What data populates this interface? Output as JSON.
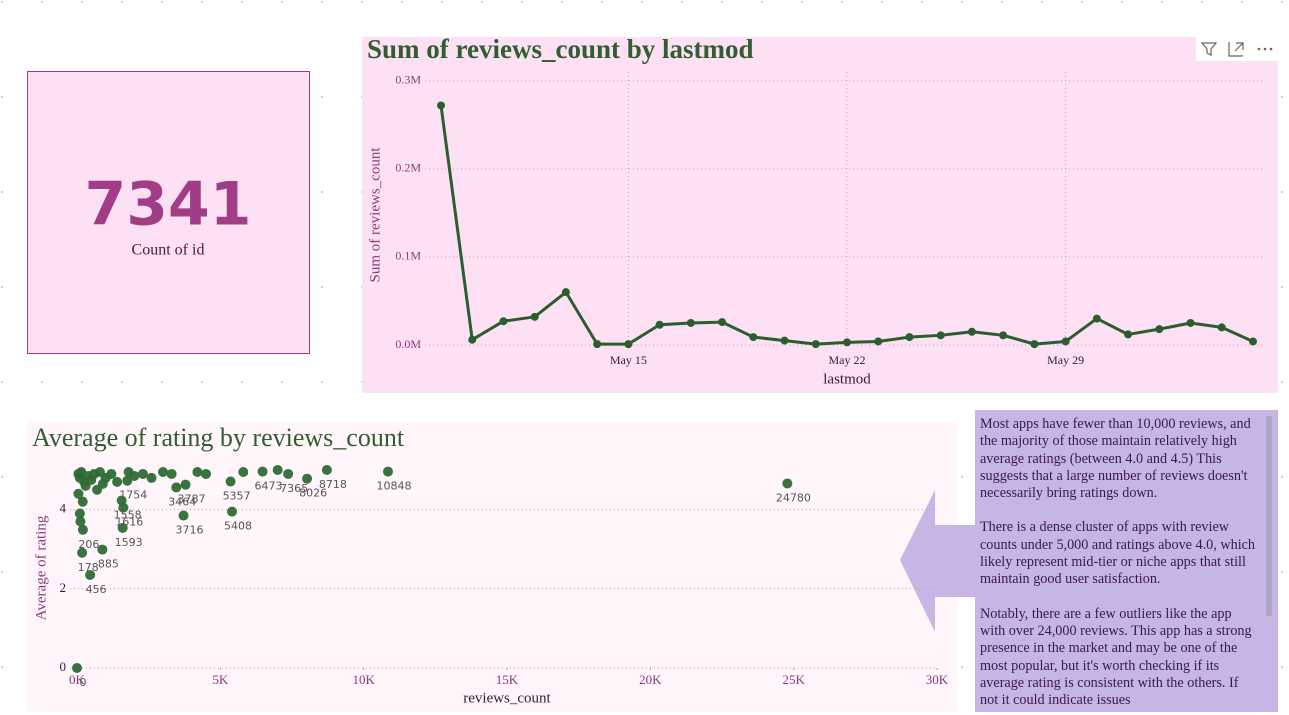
{
  "card": {
    "value": 7341,
    "label": "Count of id"
  },
  "chart_data": [
    {
      "type": "line",
      "title": "Sum of reviews_count by lastmod",
      "x_label": "lastmod",
      "y_label": "Sum of reviews_count",
      "categories": [
        "May 9",
        "May 10",
        "May 11",
        "May 12",
        "May 13",
        "May 14",
        "May 15",
        "May 16",
        "May 17",
        "May 18",
        "May 19",
        "May 20",
        "May 21",
        "May 22",
        "May 23",
        "May 24",
        "May 25",
        "May 26",
        "May 27",
        "May 28",
        "May 29",
        "May 30",
        "May 31",
        "Jun 1",
        "Jun 2",
        "Jun 3",
        "Jun 4"
      ],
      "values": [
        272000,
        6000,
        27000,
        32000,
        60000,
        1000,
        1000,
        23000,
        25000,
        26000,
        9000,
        5000,
        1000,
        3000,
        4000,
        9000,
        11000,
        15000,
        11000,
        1000,
        4000,
        30000,
        12000,
        18000,
        25000,
        20000,
        4000
      ],
      "xticks": [
        "May 15",
        "May 22",
        "May 29"
      ],
      "color": "#2a5e2e",
      "ylim": [
        0,
        310000
      ],
      "yticks": [
        {
          "value": 0,
          "label": "0.0M"
        },
        {
          "value": 100000,
          "label": "0.1M"
        },
        {
          "value": 200000,
          "label": "0.2M"
        },
        {
          "value": 300000,
          "label": "0.3M"
        }
      ],
      "grid": true
    },
    {
      "type": "scatter",
      "title": "Average of rating by reviews_count",
      "x_label": "reviews_count",
      "y_label": "Average of rating",
      "x": [
        0,
        456,
        178,
        885,
        206,
        1593,
        1616,
        1558,
        1754,
        3464,
        3716,
        3787,
        5357,
        5408,
        6473,
        7365,
        8026,
        8718,
        10848,
        24780,
        50,
        100,
        150,
        250,
        300,
        400,
        500,
        600,
        700,
        800,
        900,
        1000,
        1200,
        1400,
        1800,
        2000,
        2300,
        2600,
        3000,
        3300,
        4200,
        4500,
        5800,
        7000,
        100,
        200,
        50,
        120
      ],
      "values": [
        0,
        2.35,
        2.91,
        2.99,
        3.49,
        3.54,
        4.05,
        4.23,
        4.73,
        4.56,
        3.85,
        4.63,
        4.71,
        3.95,
        4.96,
        4.9,
        4.78,
        5.0,
        4.96,
        4.66,
        4.9,
        4.8,
        4.95,
        4.7,
        4.6,
        4.85,
        4.75,
        4.9,
        4.5,
        4.95,
        4.65,
        4.8,
        4.9,
        4.7,
        4.95,
        4.85,
        4.9,
        4.8,
        4.95,
        4.9,
        4.95,
        4.9,
        4.95,
        5.0,
        3.9,
        4.2,
        4.4,
        3.7
      ],
      "labeled": [
        true,
        true,
        true,
        true,
        true,
        true,
        true,
        true,
        true,
        true,
        true,
        true,
        true,
        true,
        true,
        true,
        true,
        true,
        true,
        true,
        false,
        false,
        false,
        false,
        false,
        false,
        false,
        false,
        false,
        false,
        false,
        false,
        false,
        false,
        false,
        false,
        false,
        false,
        false,
        false,
        false,
        false,
        false,
        false,
        false,
        false,
        false,
        false
      ],
      "color": "#2e6b35",
      "xlim": [
        0,
        30000
      ],
      "xticks": [
        {
          "value": 0,
          "label": "0K"
        },
        {
          "value": 5000,
          "label": "5K"
        },
        {
          "value": 10000,
          "label": "10K"
        },
        {
          "value": 15000,
          "label": "15K"
        },
        {
          "value": 20000,
          "label": "20K"
        },
        {
          "value": 25000,
          "label": "25K"
        },
        {
          "value": 30000,
          "label": "30K"
        }
      ],
      "ylim": [
        0,
        5
      ],
      "yticks": [
        0,
        2,
        4
      ],
      "grid": true
    }
  ],
  "text_panel": {
    "paragraphs": [
      "Most apps have fewer than 10,000 reviews, and the majority of those maintain relatively high average ratings (between 4.0 and 4.5) This suggests that a large number of reviews doesn't necessarily bring ratings down.",
      "There is a dense cluster of apps with review counts under 5,000 and ratings above 4.0, which likely represent mid-tier or niche apps that still maintain good user satisfaction.",
      "Notably, there are a few outliers like the app with over 24,000 reviews. This app has a strong presence in the market and may be one of the most popular, but it's worth checking if its average rating is consistent with the others. If not it could indicate issues"
    ]
  }
}
